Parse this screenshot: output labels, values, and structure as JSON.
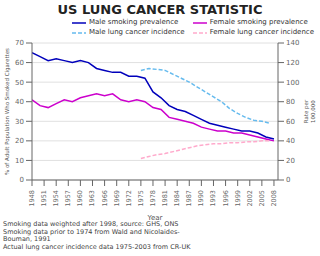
{
  "chart_data": {
    "type": "line",
    "title": "US LUNG CANCER STATISTIC",
    "xlabel": "Year",
    "ylabel": "% of Adult Population Who Smoked Cigarettes",
    "y2label": "Rate per\n100,000",
    "xlim": [
      1948,
      2009
    ],
    "xticks": [
      1948,
      1951,
      1954,
      1957,
      1960,
      1963,
      1966,
      1969,
      1972,
      1975,
      1978,
      1981,
      1984,
      1987,
      1990,
      1993,
      1996,
      1999,
      2002,
      2005,
      2008
    ],
    "ylim": [
      0,
      70
    ],
    "yticks": [
      0,
      10,
      20,
      30,
      40,
      50,
      60,
      70
    ],
    "y2lim": [
      0,
      140
    ],
    "y2ticks": [
      0,
      20,
      40,
      60,
      80,
      100,
      120,
      140
    ],
    "grid": true,
    "legend": "upper right",
    "annotations": [
      "Smoking data weighted after 1998, source: GHS, ONS\nSmoking data prior to 1974 from Wald and Nicolaides-\nBouman, 1991\nActual lung cancer incidence data 1975-2003 from CR-UK"
    ],
    "series": [
      {
        "name": "Male smoking prevalence",
        "color": "#0000bb",
        "line_style": "solid",
        "x": [
          1948,
          1950,
          1952,
          1954,
          1956,
          1958,
          1960,
          1962,
          1964,
          1966,
          1968,
          1970,
          1972,
          1974,
          1976,
          1978,
          1980,
          1982,
          1984,
          1986,
          1988,
          1990,
          1992,
          1994,
          1996,
          1998,
          2000,
          2002,
          2004,
          2006,
          2008
        ],
        "values": [
          65,
          63,
          61,
          62,
          61,
          60,
          61,
          60,
          57,
          56,
          55,
          55,
          53,
          53,
          52,
          45,
          42,
          38,
          36,
          35,
          33,
          31,
          29,
          28,
          27,
          26,
          25,
          25,
          24,
          22,
          21
        ]
      },
      {
        "name": "Female smoking prevalence",
        "color": "#cc00cc",
        "line_style": "solid",
        "x": [
          1948,
          1950,
          1952,
          1954,
          1956,
          1958,
          1960,
          1962,
          1964,
          1966,
          1968,
          1970,
          1972,
          1974,
          1976,
          1978,
          1980,
          1982,
          1984,
          1986,
          1988,
          1990,
          1992,
          1994,
          1996,
          1998,
          2000,
          2002,
          2004,
          2006,
          2008
        ],
        "values": [
          41,
          38,
          37,
          39,
          41,
          40,
          42,
          43,
          44,
          43,
          44,
          41,
          40,
          41,
          40,
          37,
          36,
          32,
          31,
          30,
          29,
          27,
          26,
          25,
          25,
          24,
          24,
          23,
          22,
          21,
          20
        ]
      },
      {
        "name": "Male lung cancer incidence",
        "color": "#66bbee",
        "line_style": "dashed",
        "axis": "y2",
        "x": [
          1975,
          1977,
          1979,
          1981,
          1983,
          1985,
          1987,
          1989,
          1991,
          1993,
          1995,
          1997,
          1999,
          2001,
          2003,
          2005,
          2007
        ],
        "values": [
          112,
          114,
          113,
          112,
          108,
          104,
          100,
          95,
          90,
          85,
          80,
          73,
          68,
          64,
          61,
          60,
          58
        ]
      },
      {
        "name": "Female lung cancer incidence",
        "color": "#ffaacc",
        "line_style": "dashed",
        "axis": "y2",
        "x": [
          1975,
          1977,
          1979,
          1981,
          1983,
          1985,
          1987,
          1989,
          1991,
          1993,
          1995,
          1997,
          1999,
          2001,
          2003,
          2005,
          2007
        ],
        "values": [
          22,
          24,
          26,
          27,
          29,
          31,
          33,
          35,
          36,
          37,
          37,
          38,
          38,
          39,
          39,
          40,
          40
        ]
      }
    ]
  }
}
